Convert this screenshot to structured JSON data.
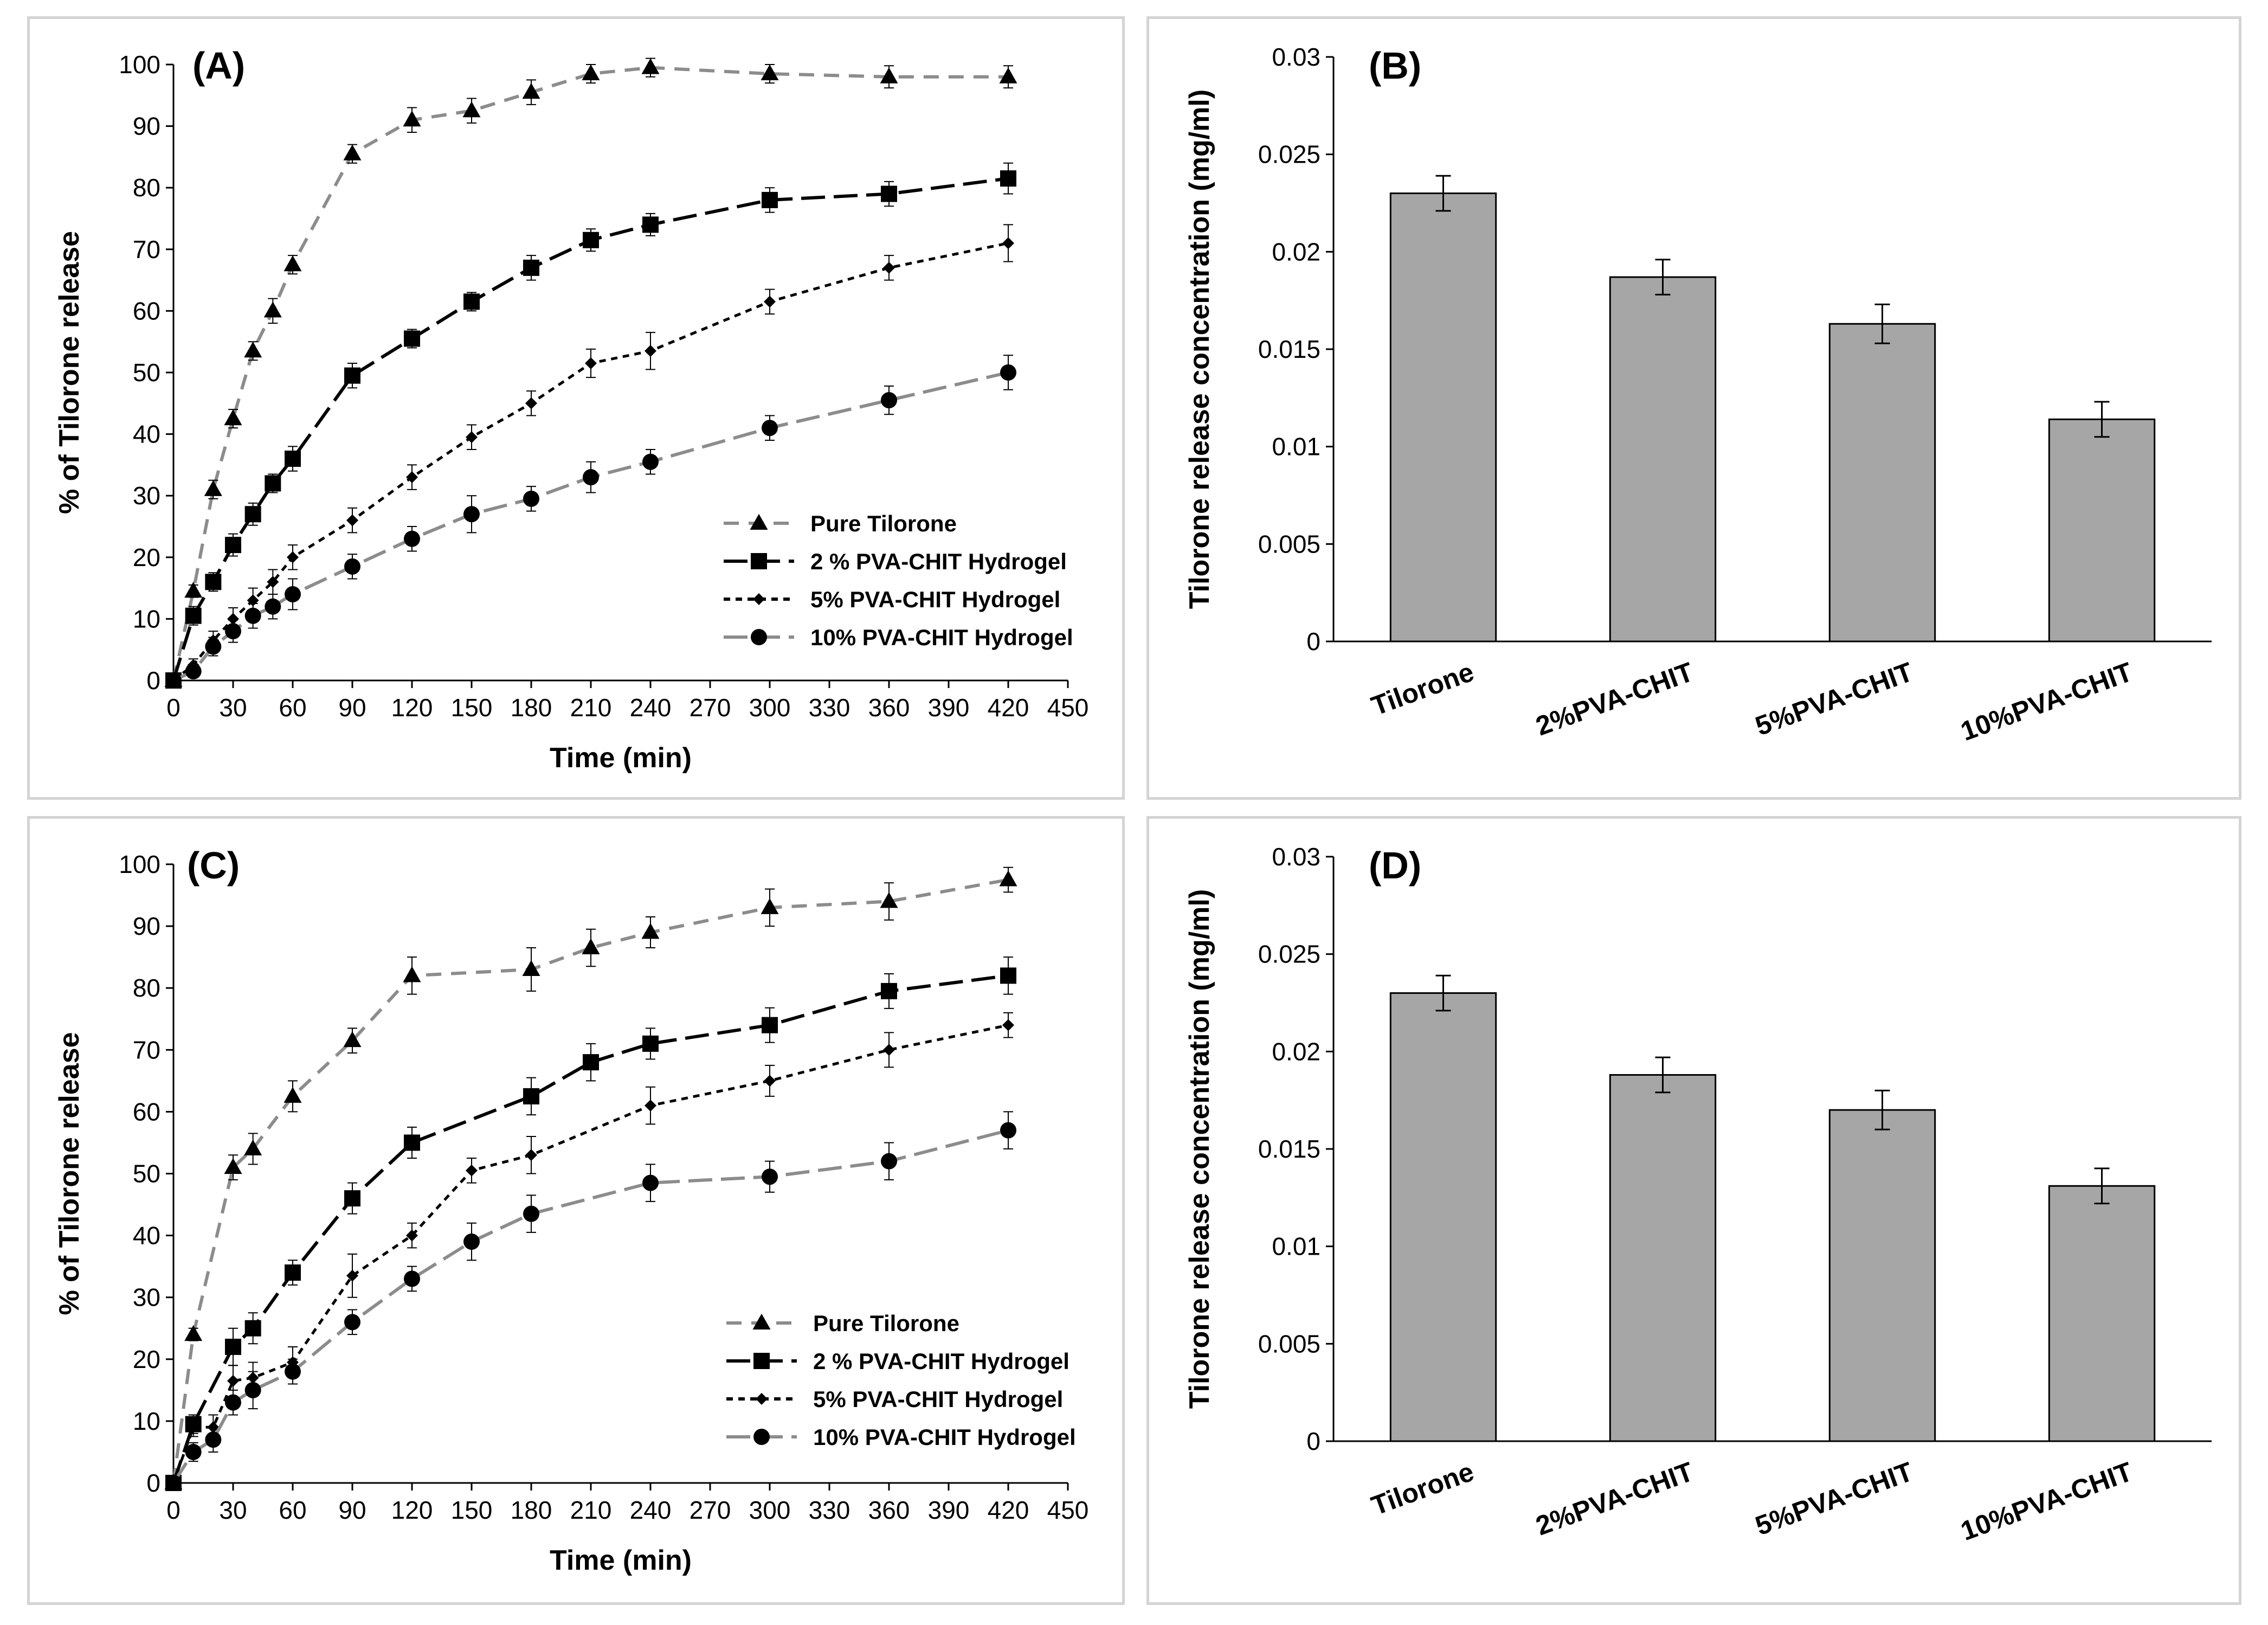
{
  "chart_data": [
    {
      "panel": "(A)",
      "type": "line",
      "xlabel": "Time (min)",
      "ylabel": "% of Tilorone release",
      "xlim": [
        0,
        450
      ],
      "ylim": [
        0,
        100
      ],
      "xticks": [
        "0",
        "30",
        "60",
        "90",
        "120",
        "150",
        "180",
        "210",
        "240",
        "270",
        "300",
        "330",
        "360",
        "390",
        "420",
        "450"
      ],
      "yticks": [
        "0",
        "10",
        "20",
        "30",
        "40",
        "50",
        "60",
        "70",
        "80",
        "90",
        "100"
      ],
      "legend_position": "bottom-right",
      "series": [
        {
          "name": "Pure Tilorone",
          "color": "#8c8c8c",
          "dash": "dashed",
          "marker": "triangle",
          "x": [
            0,
            10,
            20,
            30,
            40,
            50,
            60,
            90,
            120,
            150,
            180,
            210,
            240,
            300,
            360,
            420
          ],
          "y": [
            0,
            14.5,
            31,
            42.5,
            53.5,
            60,
            67.5,
            85.5,
            91,
            92.5,
            95.5,
            98.5,
            99.5,
            98.5,
            98,
            98
          ],
          "err": [
            0.5,
            1,
            1.5,
            1.5,
            1.5,
            2,
            1.5,
            1.5,
            2,
            2,
            2,
            1.5,
            1.5,
            1.5,
            1.8,
            1.8
          ]
        },
        {
          "name": "2 %  PVA-CHIT Hydrogel",
          "color": "#000000",
          "dash": "longdash",
          "marker": "square",
          "x": [
            0,
            10,
            20,
            30,
            40,
            50,
            60,
            90,
            120,
            150,
            180,
            210,
            240,
            300,
            360,
            420
          ],
          "y": [
            0,
            10.5,
            16,
            22,
            27,
            32,
            36,
            49.5,
            55.5,
            61.5,
            67,
            71.5,
            74,
            78,
            79,
            81.5
          ],
          "err": [
            0.5,
            1.5,
            1.5,
            1.8,
            1.8,
            1.5,
            2,
            2,
            1.5,
            1.5,
            2,
            1.8,
            1.8,
            2,
            2,
            2.5
          ]
        },
        {
          "name": "5%  PVA-CHIT Hydrogel",
          "color": "#000000",
          "dash": "dotted",
          "marker": "diamond",
          "x": [
            0,
            10,
            20,
            30,
            40,
            50,
            60,
            90,
            120,
            150,
            180,
            210,
            240,
            300,
            360,
            420
          ],
          "y": [
            0,
            2.5,
            6.5,
            10,
            13,
            16,
            20,
            26,
            33,
            39.5,
            45,
            51.5,
            53.5,
            61.5,
            67,
            71
          ],
          "err": [
            0.5,
            1,
            1.5,
            1.8,
            2,
            2,
            2,
            2,
            2,
            2,
            2,
            2.3,
            3,
            2,
            2,
            3
          ]
        },
        {
          "name": "10%  PVA-CHIT Hydrogel",
          "color": "#8c8c8c",
          "dash": "longdash",
          "marker": "circle",
          "x": [
            0,
            10,
            20,
            30,
            40,
            50,
            60,
            90,
            120,
            150,
            180,
            210,
            240,
            300,
            360,
            420
          ],
          "y": [
            0,
            1.5,
            5.5,
            8,
            10.5,
            12,
            14,
            18.5,
            23,
            27,
            29.5,
            33,
            35.5,
            41,
            45.5,
            50
          ],
          "err": [
            0.5,
            1,
            1.5,
            1.8,
            2,
            2,
            2.5,
            2,
            2,
            3,
            2,
            2.5,
            2,
            2,
            2.3,
            2.8
          ]
        }
      ]
    },
    {
      "panel": "(B)",
      "type": "bar",
      "ylabel": "Tilorone release concentration (mg/ml)",
      "categories": [
        "Tilorone",
        "2%PVA-CHIT",
        "5%PVA-CHIT",
        "10%PVA-CHIT"
      ],
      "values": [
        0.023,
        0.0187,
        0.0163,
        0.0114
      ],
      "err": [
        0.0009,
        0.0009,
        0.001,
        0.0009
      ],
      "ylim": [
        0,
        0.03
      ],
      "yticks": [
        "0",
        "0.005",
        "0.01",
        "0.015",
        "0.02",
        "0.025",
        "0.03"
      ],
      "bar_color": "#a6a6a6"
    },
    {
      "panel": "(C)",
      "type": "line",
      "xlabel": "Time (min)",
      "ylabel": "% of Tilorone release",
      "xlim": [
        0,
        450
      ],
      "ylim": [
        0,
        100
      ],
      "xticks": [
        "0",
        "30",
        "60",
        "90",
        "120",
        "150",
        "180",
        "210",
        "240",
        "270",
        "300",
        "330",
        "360",
        "390",
        "420",
        "450"
      ],
      "yticks": [
        "0",
        "10",
        "20",
        "30",
        "40",
        "50",
        "60",
        "70",
        "80",
        "90",
        "100"
      ],
      "legend_position": "bottom-right",
      "series": [
        {
          "name": "Pure Tilorone",
          "color": "#8c8c8c",
          "dash": "dashed",
          "marker": "triangle",
          "x": [
            0,
            10,
            30,
            40,
            60,
            90,
            120,
            180,
            210,
            240,
            300,
            360,
            420
          ],
          "y": [
            0,
            24,
            51,
            54,
            62.5,
            71.5,
            82,
            83,
            86.5,
            89,
            93,
            94,
            97.5
          ],
          "err": [
            0.5,
            1,
            2,
            2.5,
            2.5,
            2,
            3,
            3.5,
            3,
            2.5,
            3,
            3,
            2
          ]
        },
        {
          "name": "2 % PVA-CHIT Hydrogel",
          "color": "#000000",
          "dash": "longdash",
          "marker": "square",
          "x": [
            0,
            10,
            30,
            40,
            60,
            90,
            120,
            180,
            210,
            240,
            300,
            360,
            420
          ],
          "y": [
            0,
            9.5,
            22,
            25,
            34,
            46,
            55,
            62.5,
            68,
            71,
            74,
            79.5,
            82
          ],
          "err": [
            0.5,
            1.5,
            3,
            2.5,
            2,
            2.5,
            2.5,
            3,
            3,
            2.5,
            2.8,
            2.8,
            3
          ]
        },
        {
          "name": "5%  PVA-CHIT Hydrogel",
          "color": "#000000",
          "dash": "dotted",
          "marker": "diamond",
          "x": [
            0,
            10,
            20,
            30,
            40,
            60,
            90,
            120,
            150,
            180,
            240,
            300,
            360,
            420
          ],
          "y": [
            0,
            9,
            9,
            16.5,
            17,
            19.5,
            33.5,
            40,
            50.5,
            53,
            61,
            65,
            70,
            74
          ],
          "err": [
            0.5,
            1.5,
            2,
            2.5,
            2.5,
            2.5,
            3.5,
            2,
            2,
            3,
            3,
            2.5,
            2.8,
            2
          ]
        },
        {
          "name": "10%  PVA-CHIT Hydrogel",
          "color": "#8c8c8c",
          "dash": "longdash",
          "marker": "circle",
          "x": [
            0,
            10,
            20,
            30,
            40,
            60,
            90,
            120,
            150,
            180,
            240,
            300,
            360,
            420
          ],
          "y": [
            0,
            5,
            7,
            13,
            15,
            18,
            26,
            33,
            39,
            43.5,
            48.5,
            49.5,
            52,
            57
          ],
          "err": [
            0.5,
            1.5,
            2,
            2,
            3,
            2,
            2,
            2,
            3,
            3,
            3,
            2.5,
            3,
            3
          ]
        }
      ]
    },
    {
      "panel": "(D)",
      "type": "bar",
      "ylabel": "Tilorone release concentration (mg/ml)",
      "categories": [
        "Tilorone",
        "2%PVA-CHIT",
        "5%PVA-CHIT",
        "10%PVA-CHIT"
      ],
      "values": [
        0.023,
        0.0188,
        0.017,
        0.0131
      ],
      "err": [
        0.0009,
        0.0009,
        0.001,
        0.0009
      ],
      "ylim": [
        0,
        0.03
      ],
      "yticks": [
        "0",
        "0.005",
        "0.01",
        "0.015",
        "0.02",
        "0.025",
        "0.03"
      ],
      "bar_color": "#a6a6a6"
    }
  ]
}
